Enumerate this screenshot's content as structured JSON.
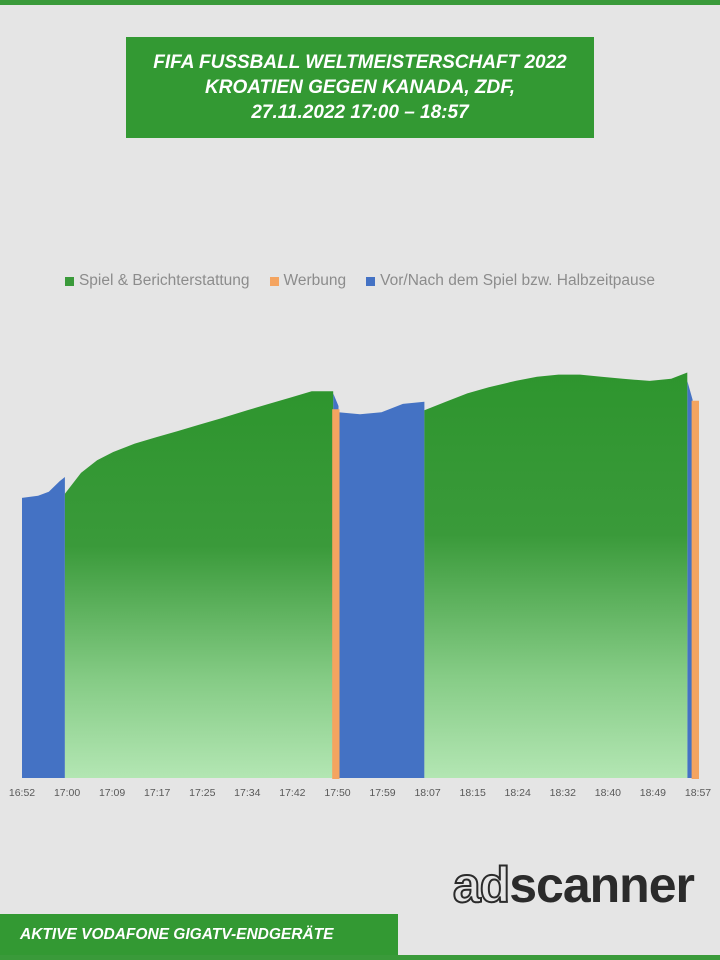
{
  "header": {
    "title_lines": [
      "FIFA FUSSBALL WELTMEISTERSCHAFT 2022",
      "KROATIEN GEGEN KANADA, ZDF,",
      "27.11.2022  17:00 – 18:57"
    ]
  },
  "legend": [
    {
      "label": "Spiel & Berichterstattung",
      "color": "#3a9a3a"
    },
    {
      "label": "Werbung",
      "color": "#f4a460"
    },
    {
      "label": "Vor/Nach dem Spiel bzw. Halbzeitpause",
      "color": "#4472c4"
    }
  ],
  "brand": {
    "logo_part1": "ad",
    "logo_part2": "scanner"
  },
  "footer": {
    "label": "AKTIVE VODAFONE GIGATV-ENDGERÄTE"
  },
  "chart_data": {
    "type": "area",
    "title": "FIFA FUSSBALL WELTMEISTERSCHAFT 2022 KROATIEN GEGEN KANADA, ZDF, 27.11.2022 17:00 – 18:57",
    "xlabel": "",
    "ylabel": "",
    "x_tick_labels": [
      "16:52",
      "17:00",
      "17:09",
      "17:17",
      "17:25",
      "17:34",
      "17:42",
      "17:50",
      "17:59",
      "18:07",
      "18:15",
      "18:24",
      "18:32",
      "18:40",
      "18:49",
      "18:57"
    ],
    "x_range": [
      "16:52",
      "18:58"
    ],
    "y_axis_visible": false,
    "ylim": [
      0,
      100
    ],
    "grid": false,
    "legend_position": "top",
    "series": [
      {
        "name": "Spiel & Berichterstattung",
        "color": "#3a9a3a",
        "segments": [
          {
            "start": "17:00",
            "end": "17:50",
            "points": [
              [
                "17:00",
                68
              ],
              [
                "17:03",
                73
              ],
              [
                "17:06",
                76
              ],
              [
                "17:09",
                78
              ],
              [
                "17:13",
                80
              ],
              [
                "17:17",
                81.5
              ],
              [
                "17:21",
                83
              ],
              [
                "17:25",
                84.5
              ],
              [
                "17:29",
                86
              ],
              [
                "17:34",
                88
              ],
              [
                "17:38",
                89.5
              ],
              [
                "17:42",
                91
              ],
              [
                "17:46",
                92.5
              ],
              [
                "17:50",
                92.5
              ]
            ]
          },
          {
            "start": "18:07",
            "end": "18:57",
            "points": [
              [
                "18:07",
                88
              ],
              [
                "18:11",
                90
              ],
              [
                "18:15",
                92
              ],
              [
                "18:19",
                93.5
              ],
              [
                "18:24",
                95
              ],
              [
                "18:28",
                96
              ],
              [
                "18:32",
                96.5
              ],
              [
                "18:36",
                96.5
              ],
              [
                "18:40",
                96
              ],
              [
                "18:44",
                95.5
              ],
              [
                "18:49",
                95
              ],
              [
                "18:53",
                95.5
              ],
              [
                "18:56",
                97
              ]
            ]
          }
        ]
      },
      {
        "name": "Werbung",
        "color": "#f4a460",
        "segments": [
          {
            "start": "17:50",
            "end": "17:51",
            "points": [
              [
                "17:50",
                88
              ],
              [
                "17:51",
                88
              ]
            ]
          },
          {
            "start": "18:57",
            "end": "18:58",
            "points": [
              [
                "18:57",
                90
              ],
              [
                "18:58",
                90
              ]
            ]
          }
        ]
      },
      {
        "name": "Vor/Nach dem Spiel bzw. Halbzeitpause",
        "color": "#4472c4",
        "segments": [
          {
            "start": "16:52",
            "end": "17:00",
            "points": [
              [
                "16:52",
                67
              ],
              [
                "16:55",
                67.5
              ],
              [
                "16:57",
                68.5
              ],
              [
                "16:59",
                71
              ],
              [
                "17:00",
                72
              ]
            ]
          },
          {
            "start": "17:50",
            "end": "17:51",
            "points": [
              [
                "17:50",
                92
              ],
              [
                "17:51",
                89
              ]
            ]
          },
          {
            "start": "17:51",
            "end": "18:07",
            "points": [
              [
                "17:51",
                87.5
              ],
              [
                "17:55",
                87
              ],
              [
                "17:59",
                87.5
              ],
              [
                "18:03",
                89.5
              ],
              [
                "18:07",
                90
              ]
            ]
          },
          {
            "start": "18:56",
            "end": "18:57",
            "points": [
              [
                "18:56",
                95
              ],
              [
                "18:57",
                90.5
              ]
            ]
          }
        ]
      }
    ]
  }
}
